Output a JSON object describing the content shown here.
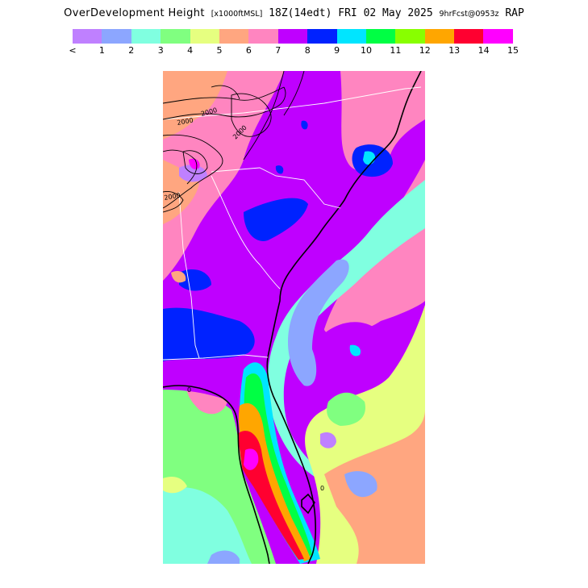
{
  "title": {
    "main": "OverDevelopment Height",
    "units": "[x1000ftMSL]",
    "time": "18Z(14edt) FRI 02 May 2025",
    "forecast": "9hrFcst@0953z",
    "model": "RAP"
  },
  "legend": {
    "colors": [
      "#bf80ff",
      "#8ca6ff",
      "#80ffe0",
      "#80ff80",
      "#e6ff80",
      "#ffa680",
      "#ff85c0",
      "#bf00ff",
      "#0022ff",
      "#00e5ff",
      "#00ff44",
      "#88ff00",
      "#ffa600",
      "#ff0030",
      "#ff00ff"
    ],
    "labels": [
      "<",
      "1",
      "2",
      "3",
      "4",
      "5",
      "6",
      "7",
      "8",
      "9",
      "10",
      "11",
      "12",
      "13",
      "14",
      "15"
    ]
  },
  "map": {
    "contour_labels": [
      "2000",
      "2000",
      "2000",
      "2000",
      "0",
      "0"
    ]
  }
}
